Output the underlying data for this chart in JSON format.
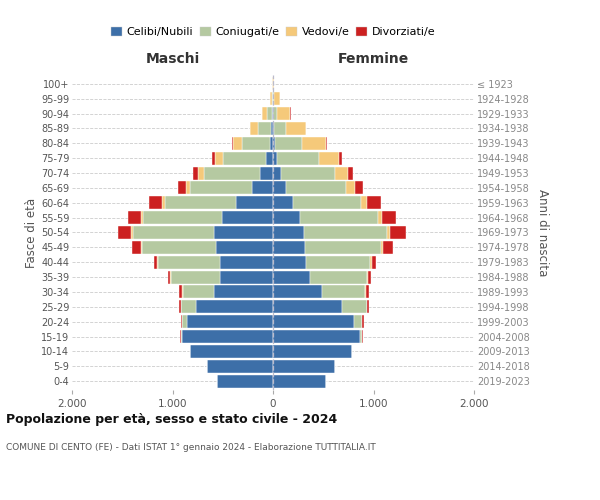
{
  "age_groups": [
    "0-4",
    "5-9",
    "10-14",
    "15-19",
    "20-24",
    "25-29",
    "30-34",
    "35-39",
    "40-44",
    "45-49",
    "50-54",
    "55-59",
    "60-64",
    "65-69",
    "70-74",
    "75-79",
    "80-84",
    "85-89",
    "90-94",
    "95-99",
    "100+"
  ],
  "birth_years_right": [
    "2019-2023",
    "2014-2018",
    "2009-2013",
    "2004-2008",
    "1999-2003",
    "1994-1998",
    "1989-1993",
    "1984-1988",
    "1979-1983",
    "1974-1978",
    "1969-1973",
    "1964-1968",
    "1959-1963",
    "1954-1958",
    "1949-1953",
    "1944-1948",
    "1939-1943",
    "1934-1938",
    "1929-1933",
    "1924-1928",
    "≤ 1923"
  ],
  "colors": {
    "celibi": "#3d6fa8",
    "coniugati": "#b5c9a1",
    "vedovi": "#f5c97a",
    "divorziati": "#cc2020"
  },
  "maschi": {
    "celibi": [
      560,
      660,
      830,
      910,
      860,
      770,
      590,
      530,
      530,
      570,
      590,
      510,
      370,
      210,
      130,
      70,
      30,
      15,
      5,
      2,
      0
    ],
    "coniugati": [
      0,
      0,
      0,
      10,
      50,
      150,
      310,
      480,
      610,
      730,
      800,
      780,
      700,
      620,
      560,
      430,
      280,
      130,
      50,
      10,
      2
    ],
    "vedovi": [
      0,
      0,
      0,
      0,
      0,
      0,
      5,
      10,
      10,
      15,
      20,
      20,
      30,
      40,
      60,
      80,
      90,
      80,
      55,
      20,
      5
    ],
    "divorziati": [
      0,
      0,
      0,
      5,
      10,
      20,
      30,
      20,
      30,
      90,
      130,
      130,
      130,
      80,
      50,
      30,
      10,
      5,
      2,
      0,
      0
    ]
  },
  "femmine": {
    "celibi": [
      530,
      620,
      790,
      870,
      810,
      690,
      490,
      370,
      330,
      320,
      310,
      270,
      200,
      130,
      80,
      40,
      20,
      8,
      3,
      1,
      0
    ],
    "coniugati": [
      0,
      0,
      0,
      20,
      80,
      250,
      430,
      570,
      640,
      750,
      820,
      770,
      680,
      600,
      540,
      420,
      270,
      120,
      40,
      10,
      2
    ],
    "vedovi": [
      0,
      0,
      0,
      0,
      0,
      0,
      5,
      10,
      15,
      20,
      30,
      40,
      60,
      90,
      130,
      200,
      240,
      200,
      130,
      60,
      10
    ],
    "divorziati": [
      0,
      0,
      0,
      5,
      15,
      20,
      30,
      25,
      40,
      100,
      160,
      140,
      130,
      80,
      50,
      25,
      10,
      5,
      2,
      0,
      0
    ]
  },
  "xlim": 2000,
  "xtick_labels": [
    "2.000",
    "1.000",
    "0",
    "1.000",
    "2.000"
  ],
  "title_main": "Popolazione per età, sesso e stato civile - 2024",
  "title_sub": "COMUNE DI CENTO (FE) - Dati ISTAT 1° gennaio 2024 - Elaborazione TUTTITALIA.IT",
  "ylabel_left": "Fasce di età",
  "ylabel_right": "Anni di nascita",
  "legend_labels": [
    "Celibi/Nubili",
    "Coniugati/e",
    "Vedovi/e",
    "Divorziati/e"
  ],
  "header_maschi": "Maschi",
  "header_femmine": "Femmine",
  "bg_color": "#ffffff",
  "grid_color": "#cccccc"
}
